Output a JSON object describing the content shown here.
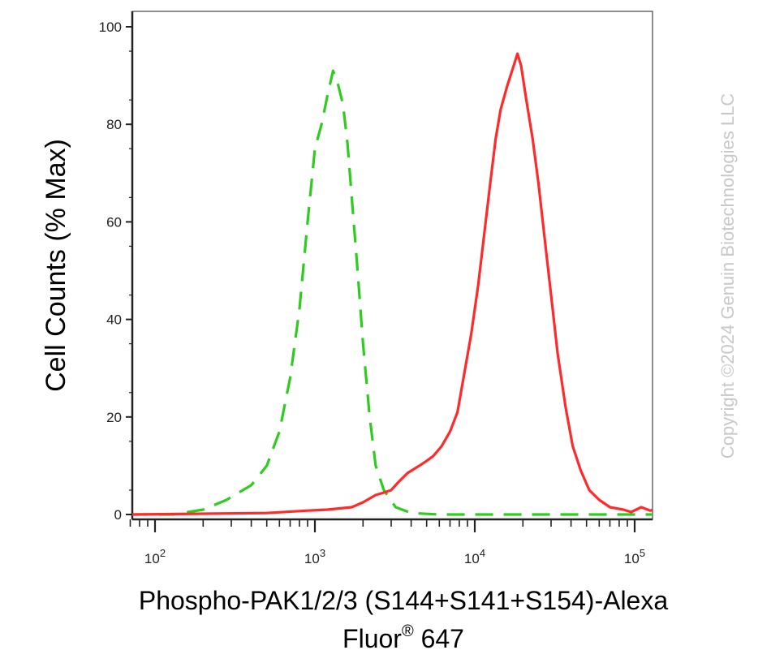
{
  "chart_data": {
    "type": "line",
    "xlabel_line1": "Phospho-PAK1/2/3 (S144+S141+S154)-Alexa",
    "xlabel_line2_main": "Fluor",
    "xlabel_line2_sup": "®",
    "xlabel_line2_tail": " 647",
    "ylabel": "Cell Counts (% Max)",
    "x_scale": "log",
    "xlim": [
      70,
      150000
    ],
    "ylim": [
      0,
      100
    ],
    "x_ticks": [
      {
        "value": 100,
        "base": "10",
        "exp": "2"
      },
      {
        "value": 1000,
        "base": "10",
        "exp": "3"
      },
      {
        "value": 10000,
        "base": "10",
        "exp": "4"
      },
      {
        "value": 100000,
        "base": "10",
        "exp": "5"
      }
    ],
    "y_ticks": [
      0,
      20,
      40,
      60,
      80,
      100
    ],
    "series": [
      {
        "color": "#2ecc1f",
        "style": "dashed",
        "points": [
          [
            70,
            0
          ],
          [
            130,
            0
          ],
          [
            200,
            1
          ],
          [
            280,
            3
          ],
          [
            400,
            6
          ],
          [
            500,
            10
          ],
          [
            600,
            17
          ],
          [
            700,
            28
          ],
          [
            800,
            42
          ],
          [
            900,
            60
          ],
          [
            1000,
            75
          ],
          [
            1100,
            80
          ],
          [
            1200,
            86
          ],
          [
            1300,
            91
          ],
          [
            1400,
            88
          ],
          [
            1500,
            84
          ],
          [
            1600,
            76
          ],
          [
            1700,
            65
          ],
          [
            1850,
            50
          ],
          [
            2000,
            35
          ],
          [
            2200,
            20
          ],
          [
            2400,
            10
          ],
          [
            2700,
            5
          ],
          [
            3200,
            1.5
          ],
          [
            4000,
            0.3
          ],
          [
            6000,
            0
          ],
          [
            150000,
            0
          ]
        ]
      },
      {
        "color": "#ff2a2a",
        "style": "solid",
        "points": [
          [
            70,
            0
          ],
          [
            500,
            0.3
          ],
          [
            900,
            0.8
          ],
          [
            1200,
            1
          ],
          [
            1700,
            1.5
          ],
          [
            2000,
            2.5
          ],
          [
            2400,
            4
          ],
          [
            2700,
            4.5
          ],
          [
            3000,
            5
          ],
          [
            3300,
            6.5
          ],
          [
            3800,
            8.5
          ],
          [
            4500,
            10
          ],
          [
            5000,
            11
          ],
          [
            5500,
            12
          ],
          [
            6200,
            14
          ],
          [
            7000,
            17
          ],
          [
            7800,
            21
          ],
          [
            8500,
            28
          ],
          [
            9500,
            37
          ],
          [
            10500,
            47
          ],
          [
            11500,
            58
          ],
          [
            12500,
            68
          ],
          [
            13500,
            77
          ],
          [
            14500,
            83
          ],
          [
            16000,
            88
          ],
          [
            17500,
            92
          ],
          [
            18500,
            94.5
          ],
          [
            19500,
            92
          ],
          [
            21000,
            85
          ],
          [
            23000,
            77
          ],
          [
            25000,
            68
          ],
          [
            27500,
            56
          ],
          [
            30000,
            45
          ],
          [
            33000,
            33
          ],
          [
            37000,
            22
          ],
          [
            41000,
            14
          ],
          [
            46000,
            9
          ],
          [
            52000,
            5
          ],
          [
            60000,
            3
          ],
          [
            70000,
            1.5
          ],
          [
            85000,
            1
          ],
          [
            95000,
            0.5
          ],
          [
            110000,
            1.5
          ],
          [
            125000,
            0.8
          ],
          [
            140000,
            1.2
          ],
          [
            150000,
            0.8
          ]
        ]
      }
    ]
  },
  "watermark": "Copyright ©2024 Genuin Biotechnologies LLC",
  "colors": {
    "green": "#2ecc1f",
    "red": "#ff2a2a",
    "axis": "#333333",
    "watermark": "#c8c8c8"
  }
}
